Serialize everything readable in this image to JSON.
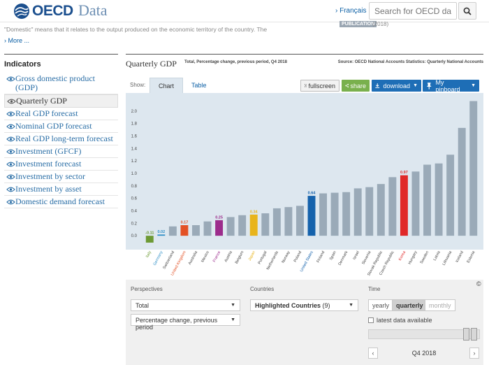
{
  "header": {
    "logo_text": "OECD",
    "site_name": "Data",
    "language": "› Français",
    "search_placeholder": "Search for OECD data"
  },
  "snippet": {
    "text": "\"Domestic\" means that it relates to the output produced on the economic territory of the country. The",
    "publication_badge": "PUBLICATION",
    "publication_year": "(2018)",
    "more_link": "› More ..."
  },
  "sidebar": {
    "title": "Indicators",
    "items": [
      {
        "label": "Gross domestic product (GDP)",
        "active": false
      },
      {
        "label": "Quarterly GDP",
        "active": true
      },
      {
        "label": "Real GDP forecast",
        "active": false
      },
      {
        "label": "Nominal GDP forecast",
        "active": false
      },
      {
        "label": "Real GDP long-term forecast",
        "active": false
      },
      {
        "label": "Investment (GFCF)",
        "active": false
      },
      {
        "label": "Investment forecast",
        "active": false
      },
      {
        "label": "Investment by sector",
        "active": false
      },
      {
        "label": "Investment by asset",
        "active": false
      },
      {
        "label": "Domestic demand forecast",
        "active": false
      }
    ]
  },
  "chart_header": {
    "title": "Quarterly GDP",
    "subtitle": "Total, Percentage change, previous period, Q4 2018",
    "source": "Source: OECD National Accounts Statistics: Quarterly National Accounts"
  },
  "toolbar": {
    "show_label": "Show:",
    "tab_chart": "Chart",
    "tab_table": "Table",
    "fullscreen": "fullscreen",
    "share": "share",
    "download": "download",
    "pinboard": "My pinboard"
  },
  "colors": {
    "default_bar": "#9aaab8",
    "italy": "#6d9a34",
    "germany": "#2f8fc7",
    "united_kingdom": "#e35125",
    "france": "#9c2c8c",
    "japan": "#e8b41c",
    "united_states": "#1462ac",
    "korea": "#e02828",
    "chart_bg": "#dde7ef"
  },
  "chart_data": {
    "type": "bar",
    "title": "",
    "xlabel": "",
    "ylabel": "",
    "ylim": [
      -0.2,
      2.2
    ],
    "yticks": [
      "0.0",
      "0.2",
      "0.4",
      "0.6",
      "0.8",
      "1.0",
      "1.2",
      "1.4",
      "1.6",
      "1.8",
      "2.0"
    ],
    "grid": false,
    "categories": [
      "Italy",
      "Germany",
      "Switzerland",
      "United Kingdom",
      "Australia",
      "Mexico",
      "France",
      "Austria",
      "Belgium",
      "Japan",
      "Portugal",
      "Netherlands",
      "Norway",
      "Poland",
      "United States",
      "Finland",
      "Spain",
      "Denmark",
      "Israel",
      "Slovenia",
      "Slovak Republic",
      "Czech Republic",
      "Korea",
      "Hungary",
      "Sweden",
      "Latvia",
      "Lithuania",
      "Iceland",
      "Estonia"
    ],
    "values": [
      -0.11,
      0.02,
      0.15,
      0.17,
      0.17,
      0.23,
      0.25,
      0.3,
      0.33,
      0.34,
      0.36,
      0.44,
      0.46,
      0.48,
      0.64,
      0.68,
      0.69,
      0.7,
      0.76,
      0.78,
      0.83,
      0.94,
      0.97,
      1.03,
      1.14,
      1.16,
      1.3,
      1.73,
      2.16
    ],
    "highlighted": [
      "Italy",
      "Germany",
      "United Kingdom",
      "France",
      "Japan",
      "United States",
      "Korea"
    ],
    "value_labels": {
      "Italy": "-0.11",
      "Germany": "0.02",
      "United Kingdom": "0.17",
      "France": "0.25",
      "Japan": "0.34",
      "United States": "0.64",
      "Korea": "0.97"
    }
  },
  "controls": {
    "perspectives_label": "Perspectives",
    "perspective_1": "Total",
    "perspective_2": "Percentage change, previous period",
    "countries_label": "Countries",
    "countries_value": "Highlighted Countries",
    "countries_count": "(9)",
    "time_label": "Time",
    "yearly": "yearly",
    "quarterly": "quarterly",
    "monthly": "monthly",
    "latest_label": "latest data available",
    "period": "Q4 2018",
    "copyright": "©"
  }
}
